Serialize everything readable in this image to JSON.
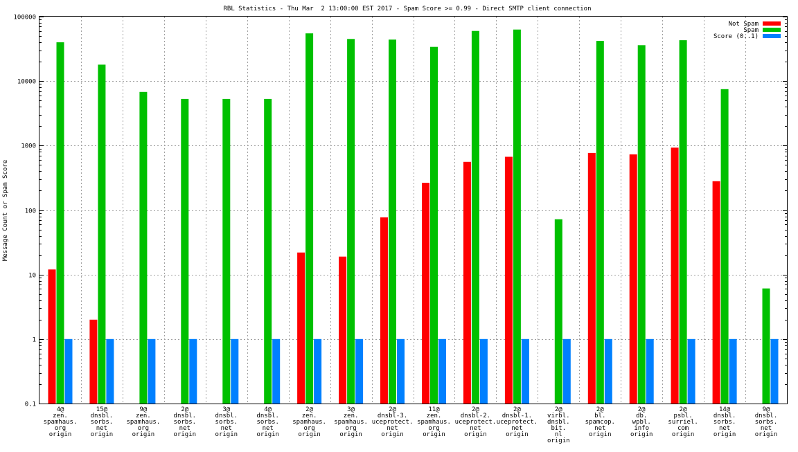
{
  "chart_data": {
    "type": "bar",
    "title": "RBL Statistics - Thu Mar  2 13:00:00 EST 2017 - Spam Score >= 0.99 - Direct SMTP client connection",
    "xlabel": "",
    "ylabel": "Message Count or Spam Score",
    "yscale": "log",
    "ylim": [
      0.1,
      100000
    ],
    "yticks": [
      "0.1",
      "1",
      "10",
      "100",
      "1000",
      "10000",
      "100000"
    ],
    "grid": true,
    "legend_position": "top-right",
    "categories": [
      [
        "4@",
        "zen.",
        "spamhaus.",
        "org",
        "origin"
      ],
      [
        "15@",
        "dnsbl.",
        "sorbs.",
        "net",
        "origin"
      ],
      [
        "9@",
        "zen.",
        "spamhaus.",
        "org",
        "origin"
      ],
      [
        "2@",
        "dnsbl.",
        "sorbs.",
        "net",
        "origin"
      ],
      [
        "3@",
        "dnsbl.",
        "sorbs.",
        "net",
        "origin"
      ],
      [
        "4@",
        "dnsbl.",
        "sorbs.",
        "net",
        "origin"
      ],
      [
        "2@",
        "zen.",
        "spamhaus.",
        "org",
        "origin"
      ],
      [
        "3@",
        "zen.",
        "spamhaus.",
        "org",
        "origin"
      ],
      [
        "2@",
        "dnsbl-3.",
        "uceprotect.",
        "net",
        "origin"
      ],
      [
        "11@",
        "zen.",
        "spamhaus.",
        "org",
        "origin"
      ],
      [
        "2@",
        "dnsbl-2.",
        "uceprotect.",
        "net",
        "origin"
      ],
      [
        "2@",
        "dnsbl-1.",
        "uceprotect.",
        "net",
        "origin"
      ],
      [
        "2@",
        "virbl.",
        "dnsbl.",
        "bit.",
        "nl",
        "origin"
      ],
      [
        "2@",
        "bl.",
        "spamcop.",
        "net",
        "origin"
      ],
      [
        "2@",
        "db.",
        "wpbl.",
        "info",
        "origin"
      ],
      [
        "2@",
        "psbl.",
        "surriel.",
        "com",
        "origin"
      ],
      [
        "14@",
        "dnsbl.",
        "sorbs.",
        "net",
        "origin"
      ],
      [
        "9@",
        "dnsbl.",
        "sorbs.",
        "net",
        "origin"
      ]
    ],
    "series": [
      {
        "name": "Not Spam",
        "color": "#ff0000",
        "values": [
          12,
          2,
          null,
          null,
          null,
          null,
          22,
          19,
          77,
          265,
          560,
          670,
          null,
          770,
          730,
          930,
          280,
          null
        ]
      },
      {
        "name": "Spam",
        "color": "#00c000",
        "values": [
          40000,
          18000,
          6800,
          5300,
          5300,
          5300,
          55000,
          45000,
          44000,
          34000,
          60000,
          63000,
          72,
          42000,
          36000,
          43000,
          7500,
          6.1
        ]
      },
      {
        "name": "Score (0..1)",
        "color": "#0080ff",
        "values": [
          1,
          1,
          1,
          1,
          1,
          1,
          1,
          1,
          1,
          1,
          1,
          1,
          1,
          1,
          1,
          1,
          1,
          1
        ]
      }
    ]
  }
}
